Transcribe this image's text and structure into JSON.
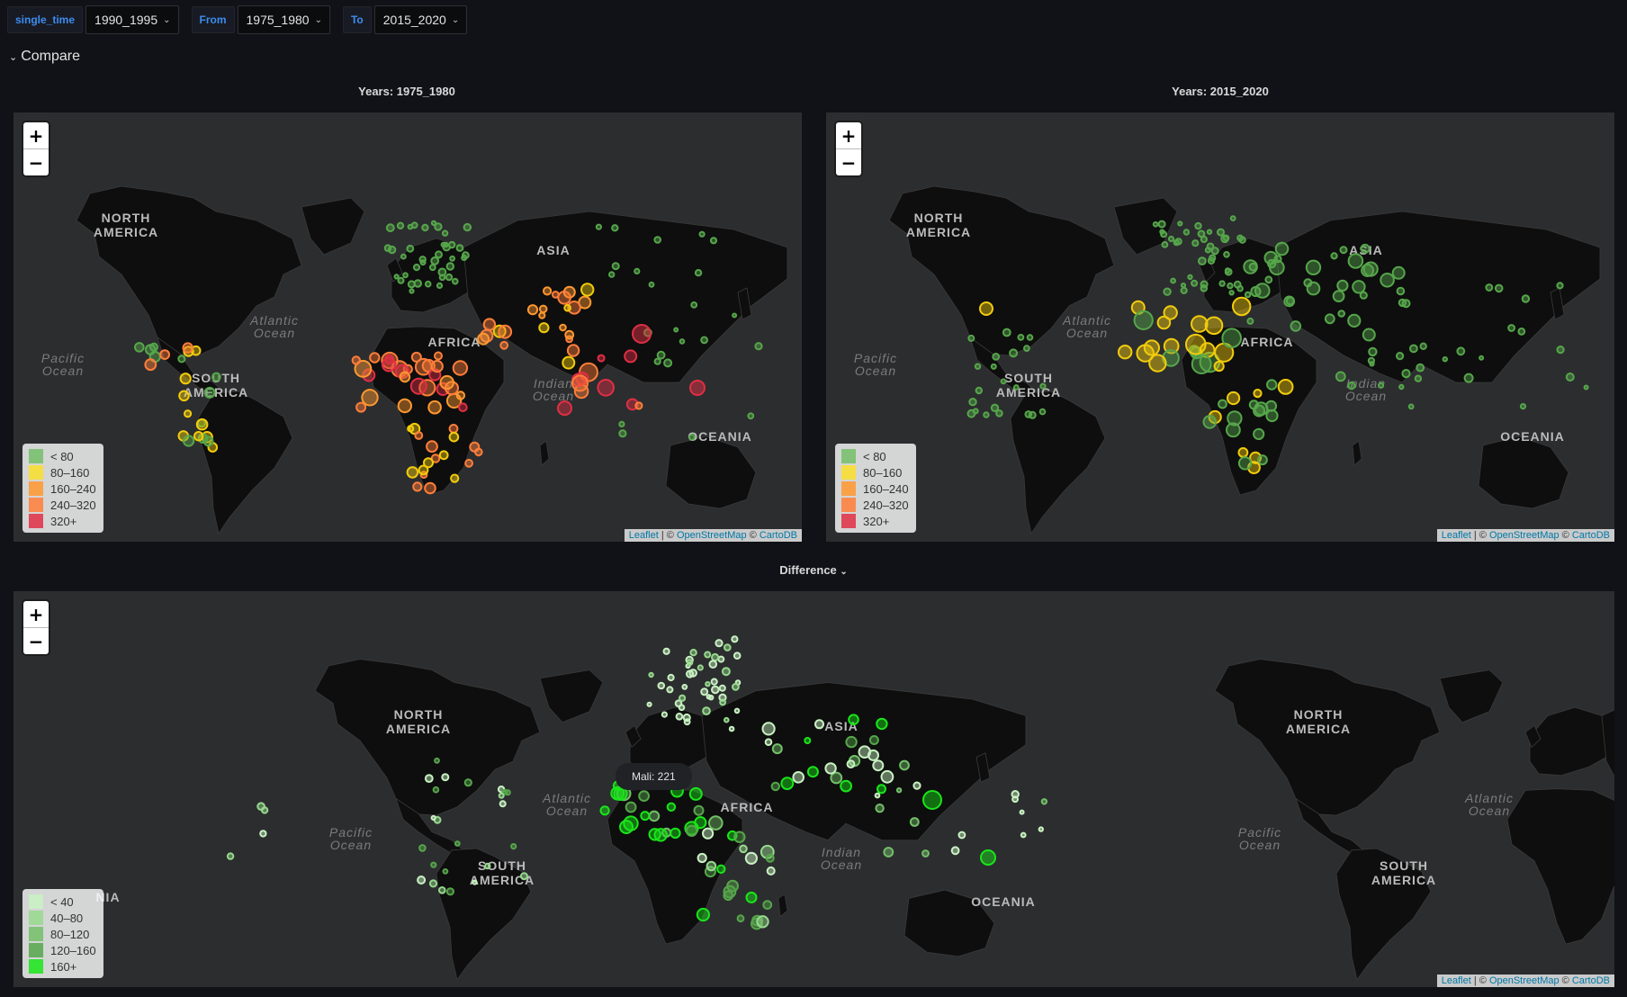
{
  "variables": [
    {
      "label": "single_time",
      "value": "1990_1995"
    },
    {
      "label": "From",
      "value": "1975_1980"
    },
    {
      "label": "To",
      "value": "2015_2020"
    }
  ],
  "rows": {
    "compare": "Compare",
    "difference": "Difference"
  },
  "panels": {
    "left_title": "Years: 1975_1980",
    "right_title": "Years: 2015_2020"
  },
  "zoom": {
    "in": "+",
    "out": "−"
  },
  "attribution": {
    "leaflet": "Leaflet",
    "sep1": " | © ",
    "osm": "OpenStreetMap",
    "sep2": " © ",
    "carto": "CartoDB"
  },
  "map_labels": {
    "continents": [
      "NORTH",
      "AMERICA",
      "SOUTH",
      "AMERICA",
      "AFRICA",
      "ASIA",
      "OCEANIA"
    ],
    "oceans": [
      "Pacific",
      "Ocean",
      "Atlantic",
      "Ocean",
      "Indian",
      "Ocean"
    ],
    "partial": "NIA"
  },
  "legend_compare": [
    {
      "label": "< 80",
      "color": "#73bf69"
    },
    {
      "label": "80–160",
      "color": "#fade2a"
    },
    {
      "label": "160–240",
      "color": "#ff9830"
    },
    {
      "label": "240–320",
      "color": "#ff7e3a"
    },
    {
      "label": "320+",
      "color": "#e02f44"
    }
  ],
  "legend_diff": [
    {
      "label": "< 40",
      "color": "#c8f2c2"
    },
    {
      "label": "40–80",
      "color": "#96d98d"
    },
    {
      "label": "80–120",
      "color": "#73bf69"
    },
    {
      "label": "120–160",
      "color": "#56a64b"
    },
    {
      "label": "160+",
      "color": "#19e619"
    }
  ],
  "tooltip": "Mali: 221"
}
